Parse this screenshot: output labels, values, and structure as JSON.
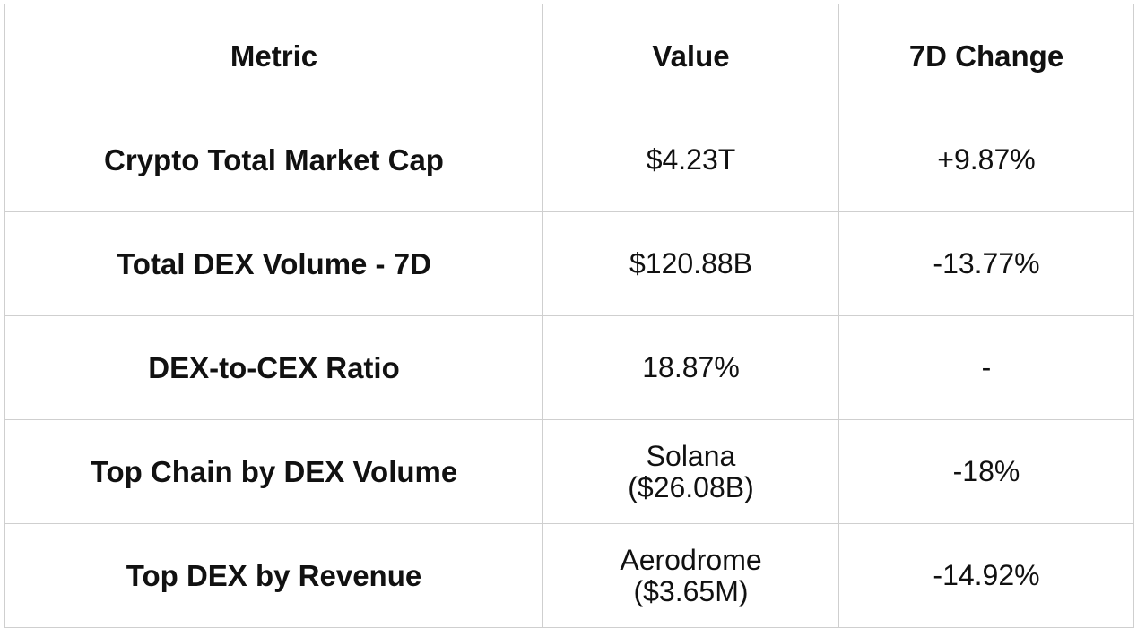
{
  "table": {
    "headers": [
      "Metric",
      "Value",
      "7D Change"
    ],
    "rows": [
      {
        "metric": "Crypto Total Market Cap",
        "value": "$4.23T",
        "value_sub": "",
        "change": "+9.87%"
      },
      {
        "metric": "Total DEX Volume - 7D",
        "value": "$120.88B",
        "value_sub": "",
        "change": "-13.77%"
      },
      {
        "metric": "DEX-to-CEX Ratio",
        "value": "18.87%",
        "value_sub": "",
        "change": "-"
      },
      {
        "metric": "Top Chain by DEX Volume",
        "value": "Solana",
        "value_sub": "($26.08B)",
        "change": "-18%"
      },
      {
        "metric": "Top DEX by Revenue",
        "value": "Aerodrome",
        "value_sub": "($3.65M)",
        "change": "-14.92%"
      }
    ]
  }
}
